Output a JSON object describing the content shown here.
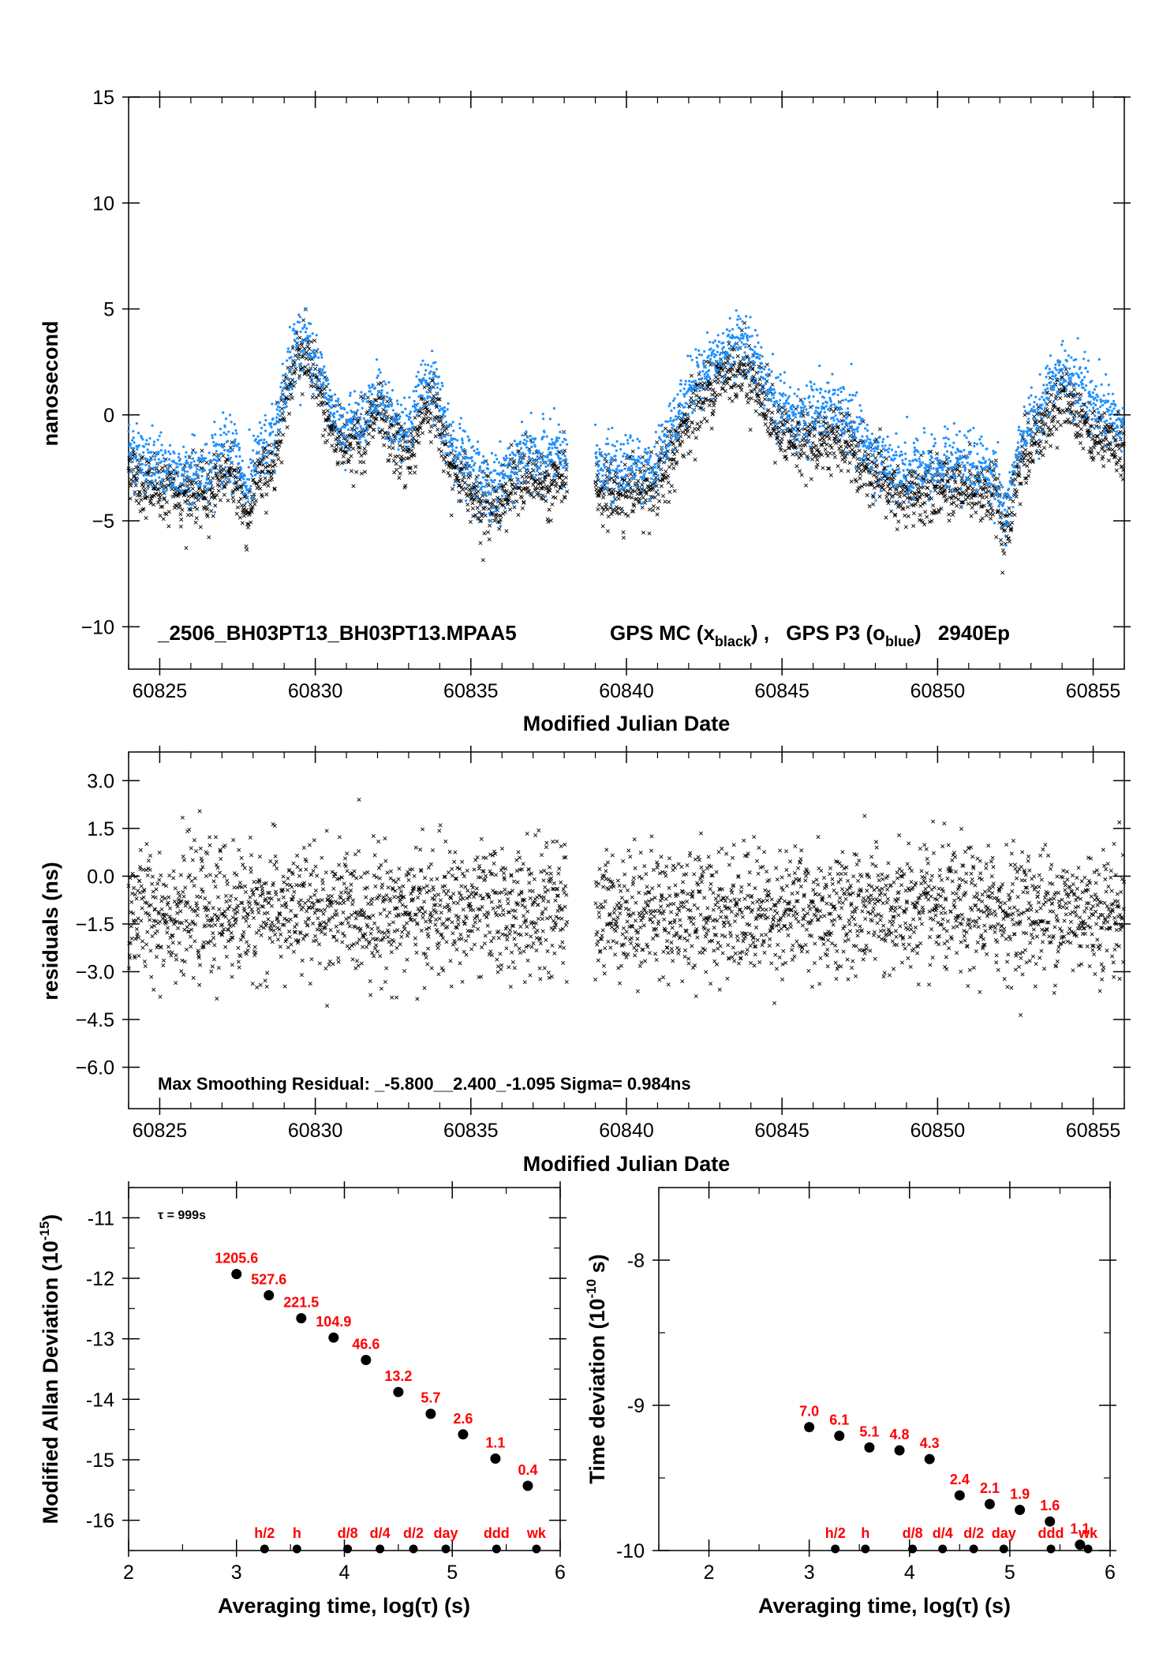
{
  "colors": {
    "black_series": "#000000",
    "blue_series": "#1e90ff",
    "label_red": "#ff0000"
  },
  "chart_data": [
    {
      "id": "time_series",
      "type": "scatter",
      "xlabel": "Modified Julian Date",
      "ylabel": "nanosecond",
      "xlim": [
        60824,
        60856
      ],
      "ylim": [
        -12,
        15
      ],
      "xticks": [
        "60825",
        "60830",
        "60835",
        "60840",
        "60845",
        "60850",
        "60855"
      ],
      "yticks": [
        "15",
        "10",
        "5",
        "0",
        "−5",
        "−10"
      ],
      "annotation": {
        "file": "_2506_BH03PT13_BH03PT13.MPAA5",
        "series_a": "GPS MC (x",
        "series_a_sub": "black",
        "series_a_close": ") ,",
        "series_b": "GPS P3 (o",
        "series_b_sub": "blue",
        "series_b_close": ")",
        "epochs": "2940Ep"
      },
      "gap": [
        60838.1,
        60839.0
      ],
      "series": [
        {
          "marker": "x",
          "color": "#000000",
          "trend": [
            [
              60824.0,
              -2.3
            ],
            [
              60824.5,
              -3.3
            ],
            [
              60825.5,
              -3.6
            ],
            [
              60826.5,
              -3.8
            ],
            [
              60827.0,
              -2.6
            ],
            [
              60827.5,
              -3.2
            ],
            [
              60827.8,
              -4.8
            ],
            [
              60828.2,
              -2.8
            ],
            [
              60828.6,
              -2.5
            ],
            [
              60829.0,
              0.5
            ],
            [
              60829.4,
              2.9
            ],
            [
              60829.8,
              2.5
            ],
            [
              60830.2,
              0.8
            ],
            [
              60830.6,
              -0.9
            ],
            [
              60831.0,
              -1.4
            ],
            [
              60831.5,
              -0.9
            ],
            [
              60832.0,
              0.0
            ],
            [
              60832.5,
              -1.2
            ],
            [
              60833.0,
              -2.0
            ],
            [
              60833.5,
              0.5
            ],
            [
              60833.9,
              0.3
            ],
            [
              60834.3,
              -2.4
            ],
            [
              60834.8,
              -3.0
            ],
            [
              60835.2,
              -3.8
            ],
            [
              60835.7,
              -4.4
            ],
            [
              60836.2,
              -3.6
            ],
            [
              60836.8,
              -2.9
            ],
            [
              60837.3,
              -3.1
            ],
            [
              60837.9,
              -3.0
            ],
            [
              60839.0,
              -3.4
            ],
            [
              60839.6,
              -3.8
            ],
            [
              60840.2,
              -3.3
            ],
            [
              60840.8,
              -3.9
            ],
            [
              60841.4,
              -2.2
            ],
            [
              60842.0,
              0.0
            ],
            [
              60842.6,
              1.1
            ],
            [
              60843.2,
              2.0
            ],
            [
              60843.7,
              2.4
            ],
            [
              60844.2,
              1.4
            ],
            [
              60844.8,
              -0.6
            ],
            [
              60845.4,
              -1.3
            ],
            [
              60846.0,
              -1.2
            ],
            [
              60846.6,
              -1.0
            ],
            [
              60847.2,
              -1.6
            ],
            [
              60847.8,
              -2.8
            ],
            [
              60848.4,
              -3.4
            ],
            [
              60849.0,
              -4.0
            ],
            [
              60849.6,
              -3.6
            ],
            [
              60850.2,
              -3.4
            ],
            [
              60850.8,
              -3.2
            ],
            [
              60851.4,
              -3.5
            ],
            [
              60851.9,
              -4.0
            ],
            [
              60852.2,
              -6.0
            ],
            [
              60852.6,
              -2.6
            ],
            [
              60853.0,
              -1.3
            ],
            [
              60853.5,
              -0.3
            ],
            [
              60854.0,
              1.0
            ],
            [
              60854.5,
              0.4
            ],
            [
              60855.0,
              -0.9
            ],
            [
              60855.5,
              -1.2
            ],
            [
              60856.0,
              -1.8
            ]
          ]
        },
        {
          "marker": "o",
          "color": "#1e90ff",
          "trend": [
            [
              60824.0,
              -1.5
            ],
            [
              60824.5,
              -2.3
            ],
            [
              60825.5,
              -2.6
            ],
            [
              60826.5,
              -2.7
            ],
            [
              60827.0,
              -1.5
            ],
            [
              60827.5,
              -2.0
            ],
            [
              60827.8,
              -3.5
            ],
            [
              60828.2,
              -1.8
            ],
            [
              60828.6,
              -1.4
            ],
            [
              60829.0,
              1.3
            ],
            [
              60829.4,
              3.6
            ],
            [
              60829.8,
              3.2
            ],
            [
              60830.2,
              1.6
            ],
            [
              60830.6,
              0.0
            ],
            [
              60831.0,
              -0.5
            ],
            [
              60831.5,
              0.0
            ],
            [
              60832.0,
              0.9
            ],
            [
              60832.5,
              -0.2
            ],
            [
              60833.0,
              -0.9
            ],
            [
              60833.5,
              1.6
            ],
            [
              60833.9,
              1.4
            ],
            [
              60834.3,
              -1.3
            ],
            [
              60834.8,
              -2.0
            ],
            [
              60835.2,
              -2.8
            ],
            [
              60835.7,
              -3.5
            ],
            [
              60836.2,
              -2.6
            ],
            [
              60836.8,
              -1.8
            ],
            [
              60837.3,
              -2.0
            ],
            [
              60837.9,
              -1.8
            ],
            [
              60839.0,
              -2.4
            ],
            [
              60839.6,
              -2.6
            ],
            [
              60840.2,
              -2.1
            ],
            [
              60840.8,
              -2.8
            ],
            [
              60841.4,
              -1.0
            ],
            [
              60842.0,
              1.3
            ],
            [
              60842.6,
              2.3
            ],
            [
              60843.2,
              3.2
            ],
            [
              60843.7,
              3.6
            ],
            [
              60844.2,
              2.6
            ],
            [
              60844.8,
              0.7
            ],
            [
              60845.4,
              0.0
            ],
            [
              60846.0,
              0.2
            ],
            [
              60846.6,
              0.4
            ],
            [
              60847.2,
              -0.2
            ],
            [
              60847.8,
              -1.6
            ],
            [
              60848.4,
              -2.2
            ],
            [
              60849.0,
              -2.8
            ],
            [
              60849.6,
              -2.4
            ],
            [
              60850.2,
              -2.2
            ],
            [
              60850.8,
              -2.0
            ],
            [
              60851.4,
              -2.4
            ],
            [
              60851.9,
              -2.9
            ],
            [
              60852.2,
              -4.8
            ],
            [
              60852.6,
              -1.5
            ],
            [
              60853.0,
              -0.3
            ],
            [
              60853.5,
              0.8
            ],
            [
              60854.0,
              2.1
            ],
            [
              60854.5,
              1.6
            ],
            [
              60855.0,
              0.3
            ],
            [
              60855.5,
              -0.1
            ],
            [
              60856.0,
              -0.7
            ]
          ]
        }
      ]
    },
    {
      "id": "residuals",
      "type": "scatter",
      "xlabel": "Modified Julian Date",
      "ylabel": "residuals (ns)",
      "xlim": [
        60824,
        60856
      ],
      "ylim": [
        -7.3,
        3.9
      ],
      "xticks": [
        "60825",
        "60830",
        "60835",
        "60840",
        "60845",
        "60850",
        "60855"
      ],
      "yticks": [
        "3.0",
        "1.5",
        "0.0",
        "−1.5",
        "−3.0",
        "−4.5",
        "−6.0"
      ],
      "annotation": "Max Smoothing Residual: _-5.800__2.400_-1.095  Sigma= 0.984ns",
      "max": 2.4,
      "min": -5.8,
      "mean": -1.095,
      "sigma": 0.984,
      "gap": [
        60838.1,
        60839.0
      ]
    },
    {
      "id": "mdev",
      "type": "scatter",
      "xlabel": "Averaging time, log(τ) (s)",
      "ylabel": "Modified Allan Deviation (10",
      "ylabel_sup": "-15",
      "ylabel_close": ")",
      "xlim": [
        2,
        6
      ],
      "ylim": [
        -16.5,
        -10.5
      ],
      "xticks": [
        "2",
        "3",
        "4",
        "5",
        "6"
      ],
      "yticks": [
        "-11",
        "-12",
        "-13",
        "-14",
        "-15",
        "-16"
      ],
      "tau_note": "τ = 999s",
      "points": [
        {
          "x": 3.0,
          "y": -11.93,
          "label": "1205.6"
        },
        {
          "x": 3.3,
          "y": -12.28,
          "label": "527.6"
        },
        {
          "x": 3.6,
          "y": -12.66,
          "label": "221.5"
        },
        {
          "x": 3.9,
          "y": -12.98,
          "label": "104.9"
        },
        {
          "x": 4.2,
          "y": -13.35,
          "label": "46.6"
        },
        {
          "x": 4.5,
          "y": -13.88,
          "label": "13.2"
        },
        {
          "x": 4.8,
          "y": -14.24,
          "label": "5.7"
        },
        {
          "x": 5.1,
          "y": -14.58,
          "label": "2.6"
        },
        {
          "x": 5.4,
          "y": -14.98,
          "label": "1.1"
        },
        {
          "x": 5.7,
          "y": -15.43,
          "label": "0.4"
        }
      ],
      "markers": [
        {
          "x": 3.26,
          "label": "h/2"
        },
        {
          "x": 3.56,
          "label": "h"
        },
        {
          "x": 4.03,
          "label": "d/8"
        },
        {
          "x": 4.33,
          "label": "d/4"
        },
        {
          "x": 4.64,
          "label": "d/2"
        },
        {
          "x": 4.94,
          "label": "day"
        },
        {
          "x": 5.41,
          "label": "ddd"
        },
        {
          "x": 5.78,
          "label": "wk"
        }
      ]
    },
    {
      "id": "tdev",
      "type": "scatter",
      "xlabel": "Averaging time, log(τ) (s)",
      "ylabel": "Time deviation (10",
      "ylabel_sup": "-10",
      "ylabel_close": " s)",
      "xlim": [
        1.5,
        6
      ],
      "ylim": [
        -10,
        -7.5
      ],
      "xticks": [
        "2",
        "3",
        "4",
        "5",
        "6"
      ],
      "yticks": [
        "-8",
        "-9",
        "-10"
      ],
      "points": [
        {
          "x": 3.0,
          "y": -9.15,
          "label": "7.0"
        },
        {
          "x": 3.3,
          "y": -9.21,
          "label": "6.1"
        },
        {
          "x": 3.6,
          "y": -9.29,
          "label": "5.1"
        },
        {
          "x": 3.9,
          "y": -9.31,
          "label": "4.8"
        },
        {
          "x": 4.2,
          "y": -9.37,
          "label": "4.3"
        },
        {
          "x": 4.5,
          "y": -9.62,
          "label": "2.4"
        },
        {
          "x": 4.8,
          "y": -9.68,
          "label": "2.1"
        },
        {
          "x": 5.1,
          "y": -9.72,
          "label": "1.9"
        },
        {
          "x": 5.4,
          "y": -9.8,
          "label": "1.6"
        },
        {
          "x": 5.7,
          "y": -9.96,
          "label": "1.1"
        }
      ],
      "markers": [
        {
          "x": 3.26,
          "label": "h/2"
        },
        {
          "x": 3.56,
          "label": "h"
        },
        {
          "x": 4.03,
          "label": "d/8"
        },
        {
          "x": 4.33,
          "label": "d/4"
        },
        {
          "x": 4.64,
          "label": "d/2"
        },
        {
          "x": 4.94,
          "label": "day"
        },
        {
          "x": 5.41,
          "label": "ddd"
        },
        {
          "x": 5.78,
          "label": "wk"
        }
      ]
    }
  ]
}
